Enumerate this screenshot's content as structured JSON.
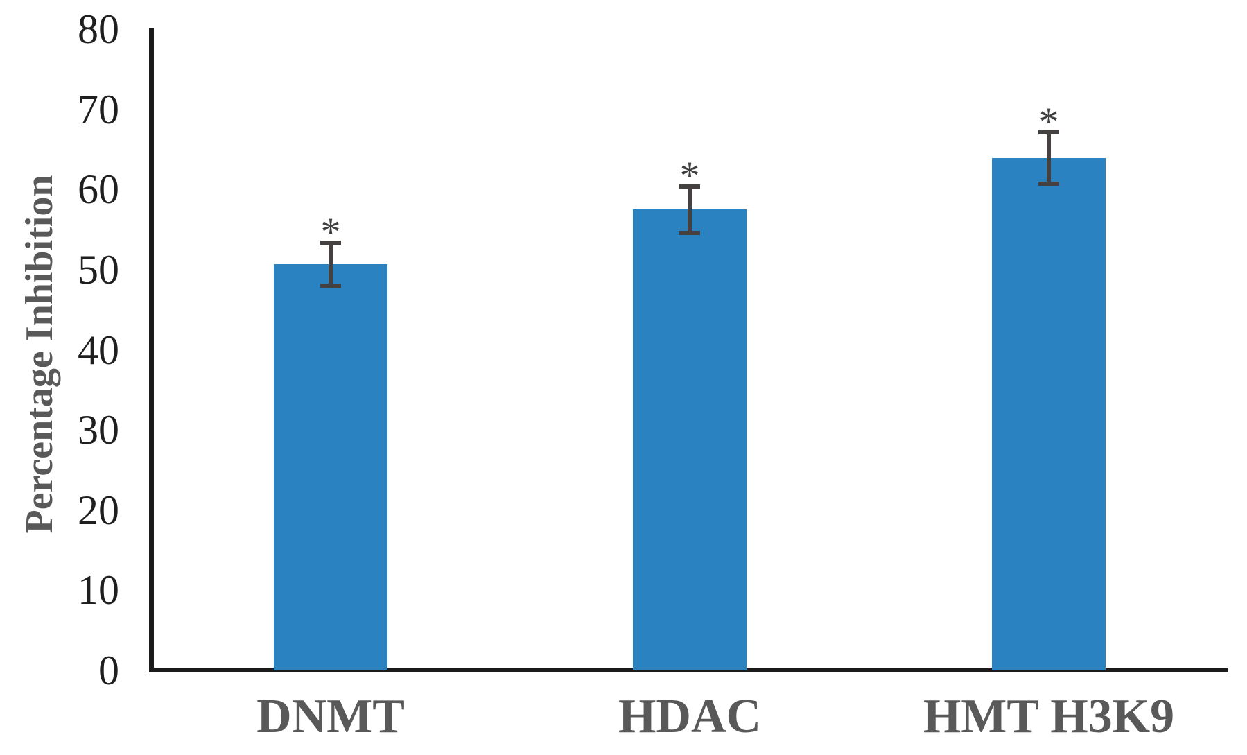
{
  "chart_data": {
    "type": "bar",
    "title": "",
    "ylabel": "Percentage Inhibition",
    "xlabel": "",
    "categories": [
      "DNMT",
      "HDAC",
      "HMT H3K9"
    ],
    "series": [
      {
        "name": "Percentage Inhibition",
        "values": [
          50.7,
          57.5,
          63.9
        ],
        "error_bars": [
          2.7,
          2.9,
          3.2
        ]
      }
    ],
    "significance_markers": [
      "*",
      "*",
      "*"
    ],
    "ylim": [
      0,
      80
    ],
    "ytick_step": 10,
    "ytick_labels": [
      "0",
      "10",
      "20",
      "30",
      "40",
      "50",
      "60",
      "70",
      "80"
    ],
    "grid": false,
    "legend": null,
    "colors": {
      "bar": "#2B82C1",
      "error_bar": "#454140",
      "axis": "#1b1b1b",
      "tick_label": "#1f1f1f",
      "category_label": "#595959",
      "ylabel": "#595959",
      "asterisk": "#3f3f3f",
      "background": "#ffffff"
    }
  }
}
